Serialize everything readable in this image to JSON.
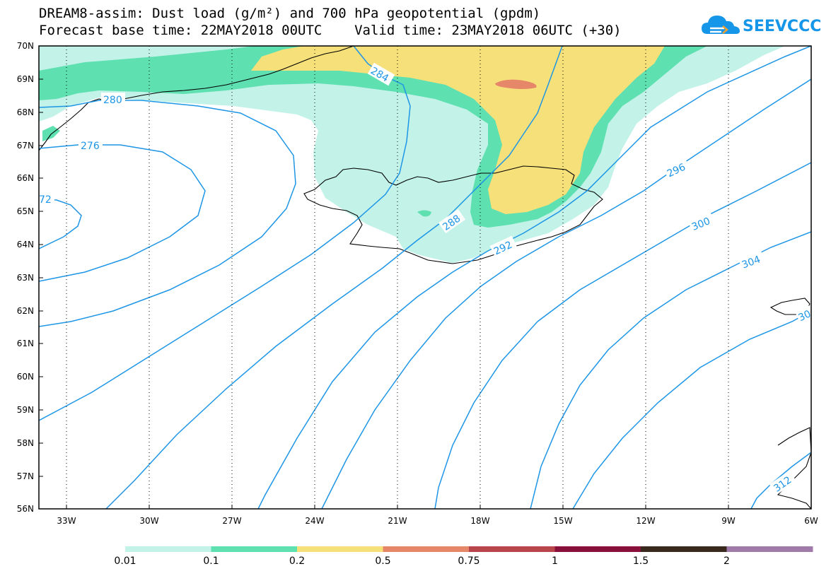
{
  "title": {
    "line1": "DREAM8-assim: Dust load (g/m²) and 700 hPa geopotential (gpdm)",
    "line2": "Forecast base time: 22MAY2018 00UTC    Valid time: 23MAY2018 06UTC (+30)"
  },
  "logo": {
    "text": "SEEVCCC",
    "icon": "cloud-icon",
    "color": "#1696e8"
  },
  "map": {
    "lon_range": [
      -34,
      -6
    ],
    "lat_range": [
      56,
      70
    ],
    "lat_labels": [
      "70N",
      "69N",
      "68N",
      "67N",
      "66N",
      "65N",
      "64N",
      "63N",
      "62N",
      "61N",
      "60N",
      "59N",
      "58N",
      "57N",
      "56N"
    ],
    "lon_labels": [
      "33W",
      "30W",
      "27W",
      "24W",
      "21W",
      "18W",
      "15W",
      "12W",
      "9W",
      "6W"
    ],
    "contour_color": "#1e96e6",
    "contour_labels": [
      "280",
      "276",
      "72",
      "284",
      "288",
      "292",
      "296",
      "300",
      "304",
      "30",
      "312"
    ]
  },
  "colorbar": {
    "labels": [
      "0.01",
      "0.1",
      "0.2",
      "0.5",
      "0.75",
      "1",
      "1.5",
      "2"
    ],
    "colors": [
      "#c2f2e8",
      "#5ee0b0",
      "#f6e07a",
      "#e6876a",
      "#b8454a",
      "#88103a",
      "#3a2a1e",
      "#a07aa8"
    ]
  }
}
